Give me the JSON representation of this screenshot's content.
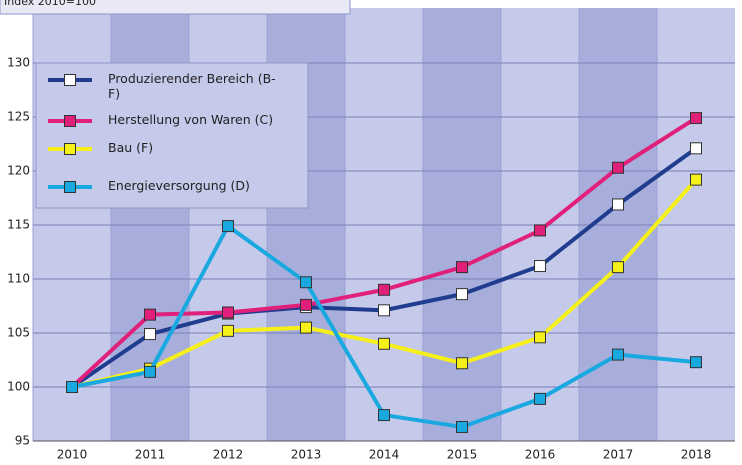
{
  "chart_data": {
    "type": "line",
    "subtitle": "Index 2010=100",
    "categories": [
      "2010",
      "2011",
      "2012",
      "2013",
      "2014",
      "2015",
      "2016",
      "2017",
      "2018"
    ],
    "series": [
      {
        "name": "Produzierender Bereich (B-F)",
        "color": "#1f3c8f",
        "marker": "#ffffff",
        "values": [
          100,
          104.9,
          106.8,
          107.4,
          107.1,
          108.6,
          111.2,
          116.9,
          122.1
        ]
      },
      {
        "name": "Herstellung von Waren (C)",
        "color": "#e0207a",
        "marker": "#e0207a",
        "values": [
          100,
          106.7,
          106.9,
          107.6,
          109.0,
          111.1,
          114.5,
          120.3,
          124.9
        ]
      },
      {
        "name": "Bau (F)",
        "color": "#f5ef1a",
        "marker": "#f5ef1a",
        "values": [
          100,
          101.7,
          105.2,
          105.5,
          104.0,
          102.2,
          104.6,
          111.1,
          119.2
        ]
      },
      {
        "name": "Energieversorgung (D)",
        "color": "#1aa8e0",
        "marker": "#1aa8e0",
        "values": [
          100,
          101.4,
          114.9,
          109.7,
          97.4,
          96.3,
          98.9,
          103.0,
          102.3
        ]
      }
    ],
    "ylim": [
      95,
      130
    ],
    "yticks": [
      95,
      100,
      105,
      110,
      115,
      120,
      125,
      130
    ],
    "grid": true
  }
}
